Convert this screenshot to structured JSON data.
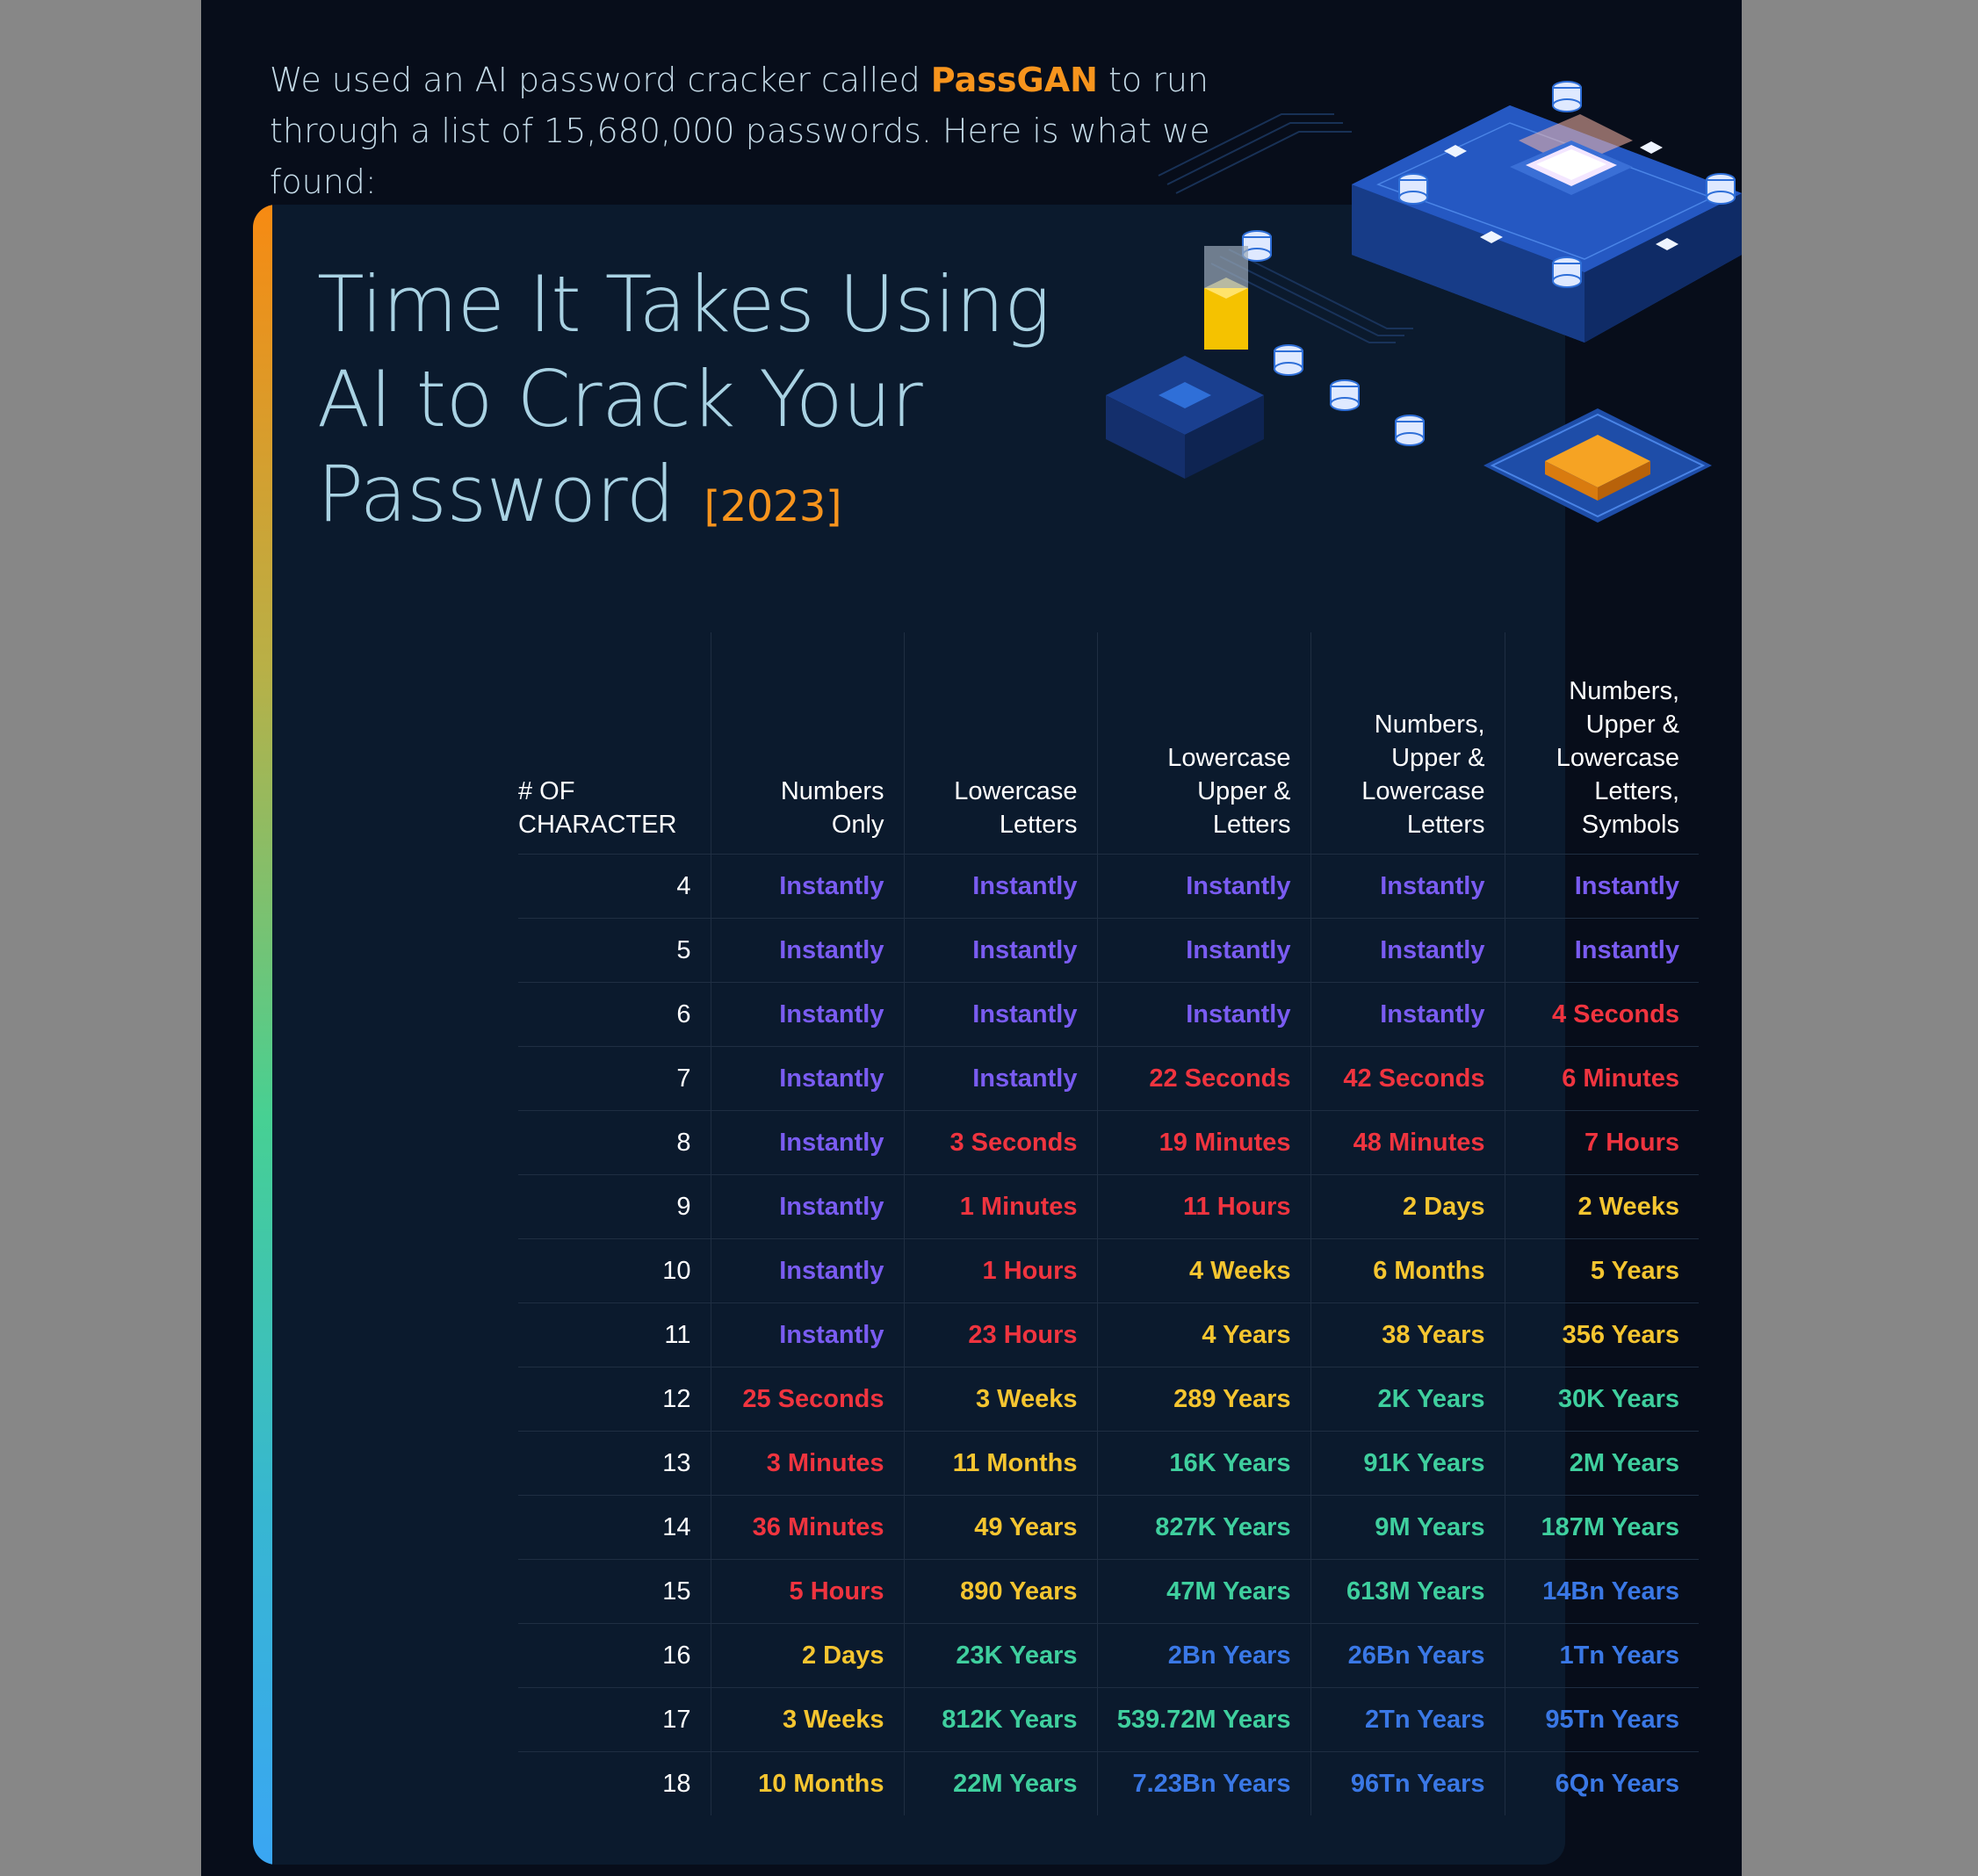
{
  "intro": {
    "line1_before": "We used an AI password cracker called ",
    "highlight": "PassGAN",
    "line1_after": " to run",
    "line2": "through a list of 15,680,000 passwords. Here is what we found:"
  },
  "title": {
    "line1": "Time It Takes Using",
    "line2": "AI to Crack Your",
    "line3": "Password",
    "year": "[2023]"
  },
  "colors": {
    "instantly": "#7a5cf2",
    "red": "#f0343f",
    "yellow": "#f5c530",
    "green": "#3fcf9e",
    "blue": "#3a78e6",
    "accent": "#f7941d"
  },
  "table": {
    "headers": [
      [
        "# OF",
        "CHARACTER"
      ],
      [
        "Numbers",
        "Only"
      ],
      [
        "Lowercase",
        "Letters"
      ],
      [
        "Lowercase",
        "Upper &",
        "Letters"
      ],
      [
        "Numbers,",
        "Upper &",
        "Lowercase",
        "Letters"
      ],
      [
        "Numbers,",
        "Upper &",
        "Lowercase",
        "Letters,",
        "Symbols"
      ]
    ],
    "rows": [
      {
        "n": "4",
        "v": [
          [
            "Instantly",
            "inst"
          ],
          [
            "Instantly",
            "inst"
          ],
          [
            "Instantly",
            "inst"
          ],
          [
            "Instantly",
            "inst"
          ],
          [
            "Instantly",
            "inst"
          ]
        ]
      },
      {
        "n": "5",
        "v": [
          [
            "Instantly",
            "inst"
          ],
          [
            "Instantly",
            "inst"
          ],
          [
            "Instantly",
            "inst"
          ],
          [
            "Instantly",
            "inst"
          ],
          [
            "Instantly",
            "inst"
          ]
        ]
      },
      {
        "n": "6",
        "v": [
          [
            "Instantly",
            "inst"
          ],
          [
            "Instantly",
            "inst"
          ],
          [
            "Instantly",
            "inst"
          ],
          [
            "Instantly",
            "inst"
          ],
          [
            "4 Seconds",
            "red"
          ]
        ]
      },
      {
        "n": "7",
        "v": [
          [
            "Instantly",
            "inst"
          ],
          [
            "Instantly",
            "inst"
          ],
          [
            "22 Seconds",
            "red"
          ],
          [
            "42 Seconds",
            "red"
          ],
          [
            "6 Minutes",
            "red"
          ]
        ]
      },
      {
        "n": "8",
        "v": [
          [
            "Instantly",
            "inst"
          ],
          [
            "3 Seconds",
            "red"
          ],
          [
            "19 Minutes",
            "red"
          ],
          [
            "48 Minutes",
            "red"
          ],
          [
            "7 Hours",
            "red"
          ]
        ]
      },
      {
        "n": "9",
        "v": [
          [
            "Instantly",
            "inst"
          ],
          [
            "1 Minutes",
            "red"
          ],
          [
            "11 Hours",
            "red"
          ],
          [
            "2 Days",
            "yel"
          ],
          [
            "2 Weeks",
            "yel"
          ]
        ]
      },
      {
        "n": "10",
        "v": [
          [
            "Instantly",
            "inst"
          ],
          [
            "1 Hours",
            "red"
          ],
          [
            "4 Weeks",
            "yel"
          ],
          [
            "6 Months",
            "yel"
          ],
          [
            "5 Years",
            "yel"
          ]
        ]
      },
      {
        "n": "11",
        "v": [
          [
            "Instantly",
            "inst"
          ],
          [
            "23 Hours",
            "red"
          ],
          [
            "4 Years",
            "yel"
          ],
          [
            "38 Years",
            "yel"
          ],
          [
            "356 Years",
            "yel"
          ]
        ]
      },
      {
        "n": "12",
        "v": [
          [
            "25 Seconds",
            "red"
          ],
          [
            "3 Weeks",
            "yel"
          ],
          [
            "289 Years",
            "yel"
          ],
          [
            "2K Years",
            "grn"
          ],
          [
            "30K Years",
            "grn"
          ]
        ]
      },
      {
        "n": "13",
        "v": [
          [
            "3 Minutes",
            "red"
          ],
          [
            "11 Months",
            "yel"
          ],
          [
            "16K Years",
            "grn"
          ],
          [
            "91K Years",
            "grn"
          ],
          [
            "2M Years",
            "grn"
          ]
        ]
      },
      {
        "n": "14",
        "v": [
          [
            "36 Minutes",
            "red"
          ],
          [
            "49 Years",
            "yel"
          ],
          [
            "827K Years",
            "grn"
          ],
          [
            "9M Years",
            "grn"
          ],
          [
            "187M Years",
            "grn"
          ]
        ]
      },
      {
        "n": "15",
        "v": [
          [
            "5 Hours",
            "red"
          ],
          [
            "890 Years",
            "yel"
          ],
          [
            "47M Years",
            "grn"
          ],
          [
            "613M Years",
            "grn"
          ],
          [
            "14Bn Years",
            "blu"
          ]
        ]
      },
      {
        "n": "16",
        "v": [
          [
            "2 Days",
            "yel"
          ],
          [
            "23K Years",
            "grn"
          ],
          [
            "2Bn Years",
            "blu"
          ],
          [
            "26Bn Years",
            "blu"
          ],
          [
            "1Tn Years",
            "blu"
          ]
        ]
      },
      {
        "n": "17",
        "v": [
          [
            "3 Weeks",
            "yel"
          ],
          [
            "812K Years",
            "grn"
          ],
          [
            "539.72M Years",
            "grn"
          ],
          [
            "2Tn Years",
            "blu"
          ],
          [
            "95Tn Years",
            "blu"
          ]
        ]
      },
      {
        "n": "18",
        "v": [
          [
            "10 Months",
            "yel"
          ],
          [
            "22M Years",
            "grn"
          ],
          [
            "7.23Bn Years",
            "blu"
          ],
          [
            "96Tn Years",
            "blu"
          ],
          [
            "6Qn Years",
            "blu"
          ]
        ]
      }
    ]
  }
}
